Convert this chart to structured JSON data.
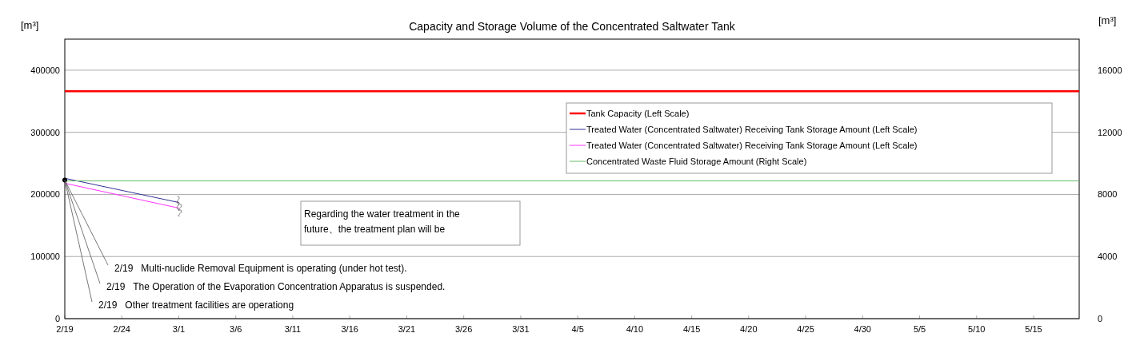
{
  "chart_data": {
    "type": "line",
    "title": "Capacity and Storage Volume of the Concentrated Saltwater Tank",
    "ylabel": "[m³]",
    "y2label": "[m³]",
    "xlim": [
      "--02-19",
      "--05-19"
    ],
    "xticks": [
      {
        "value": "--02-19",
        "label": "2/19"
      },
      {
        "value": "--02-24",
        "label": "2/24"
      },
      {
        "value": "--03-01",
        "label": "3/1"
      },
      {
        "value": "--03-06",
        "label": "3/6"
      },
      {
        "value": "--03-11",
        "label": "3/11"
      },
      {
        "value": "--03-16",
        "label": "3/16"
      },
      {
        "value": "--03-21",
        "label": "3/21"
      },
      {
        "value": "--03-26",
        "label": "3/26"
      },
      {
        "value": "--03-31",
        "label": "3/31"
      },
      {
        "value": "--04-05",
        "label": "4/5"
      },
      {
        "value": "--04-10",
        "label": "4/10"
      },
      {
        "value": "--04-15",
        "label": "4/15"
      },
      {
        "value": "--04-20",
        "label": "4/20"
      },
      {
        "value": "--04-25",
        "label": "4/25"
      },
      {
        "value": "--04-30",
        "label": "4/30"
      },
      {
        "value": "--05-05",
        "label": "5/5"
      },
      {
        "value": "--05-10",
        "label": "5/10"
      },
      {
        "value": "--05-15",
        "label": "5/15"
      }
    ],
    "ylim": [
      0,
      450000
    ],
    "yticks": [
      0,
      100000,
      200000,
      300000,
      400000
    ],
    "y2lim": [
      0,
      18000
    ],
    "y2ticks": [
      0,
      4000,
      8000,
      12000,
      16000
    ],
    "grid": "y",
    "legend": "top right",
    "series": [
      {
        "name": "Tank Capacity (Left Scale)",
        "color": "#ff0000",
        "x": [
          "--02-19",
          "--05-19"
        ],
        "values": [
          366000,
          366000
        ]
      },
      {
        "name": "Treated Water (Concentrated Saltwater) Receiving Tank Storage Amount (Left Scale)",
        "color": "#333399",
        "x": [
          "--02-19",
          "--03-01"
        ],
        "values": [
          226000,
          187000
        ]
      },
      {
        "name": "Treated Water (Concentrated Saltwater) Receiving Tank Storage Amount (Left Scale)",
        "color": "#ff33ff",
        "x": [
          "--02-19",
          "--03-01"
        ],
        "values": [
          218000,
          178000
        ]
      },
      {
        "name": "Concentrated Waste Fluid Storage Amount (Right Scale)",
        "axis": "y2",
        "color": "#66bb66",
        "x": [
          "--02-19",
          "--05-19"
        ],
        "values": [
          8870,
          8870
        ]
      },
      {
        "type": "scatter",
        "marker": "circle",
        "color": "#000000",
        "x": [
          "--02-19"
        ],
        "values": [
          223000
        ]
      }
    ],
    "annotations": [
      {
        "text": "2/19   Multi-nuclide Removal Equipment is operating (under hot test).",
        "x": "--02-19",
        "y": 223000
      },
      {
        "text": "2/19   The Operation of the Evaporation Concentration Apparatus is suspended.",
        "x": "--02-19",
        "y": 223000
      },
      {
        "text": "2/19   Other treatment facilities are operationg",
        "x": "--02-19",
        "y": 223000
      },
      "Regarding the water treatment in the\nfuture、the treatment plan will be"
    ]
  }
}
